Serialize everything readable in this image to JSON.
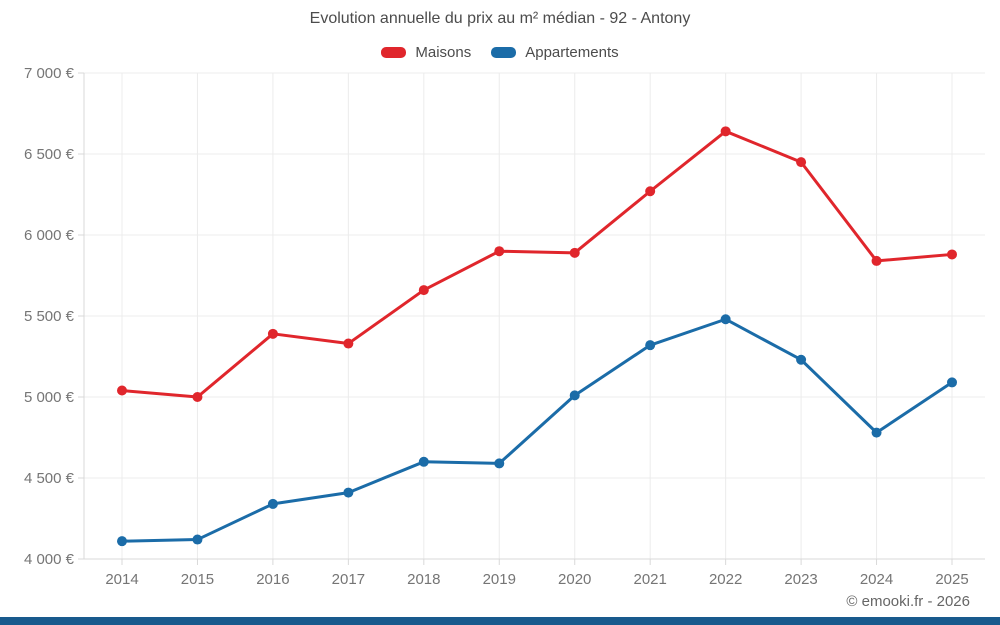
{
  "page": {
    "footer_credit": "© emooki.fr - 2026",
    "bottom_bar_color": "#185a8d",
    "background": "#ffffff"
  },
  "colors": {
    "grid": "#ececec",
    "axis": "#d9d9d9",
    "tick_text": "#757575",
    "title_text": "#4c4c4c"
  },
  "chart_data": {
    "type": "line",
    "title": "Evolution annuelle du prix au m² médian - 92 - Antony",
    "categories": [
      "2014",
      "2015",
      "2016",
      "2017",
      "2018",
      "2019",
      "2020",
      "2021",
      "2022",
      "2023",
      "2024",
      "2025"
    ],
    "series": [
      {
        "name": "Maisons",
        "color": "#e0262c",
        "values": [
          5040,
          5000,
          5390,
          5330,
          5660,
          5900,
          5890,
          6270,
          6640,
          6450,
          5840,
          5880
        ]
      },
      {
        "name": "Appartements",
        "color": "#1b6ca8",
        "values": [
          4110,
          4120,
          4340,
          4410,
          4600,
          4590,
          5010,
          5320,
          5480,
          5230,
          4780,
          5090
        ]
      }
    ],
    "ylim": [
      4000,
      7000
    ],
    "yticks": {
      "values": [
        7000,
        6500,
        6000,
        5500,
        5000,
        4500,
        4000
      ],
      "labels": [
        "7 000 €",
        "6 500 €",
        "6 000 €",
        "5 500 €",
        "5 000 €",
        "4 500 €",
        "4 000 €"
      ]
    },
    "grid": true,
    "legend_position": "top",
    "currency": "€"
  }
}
